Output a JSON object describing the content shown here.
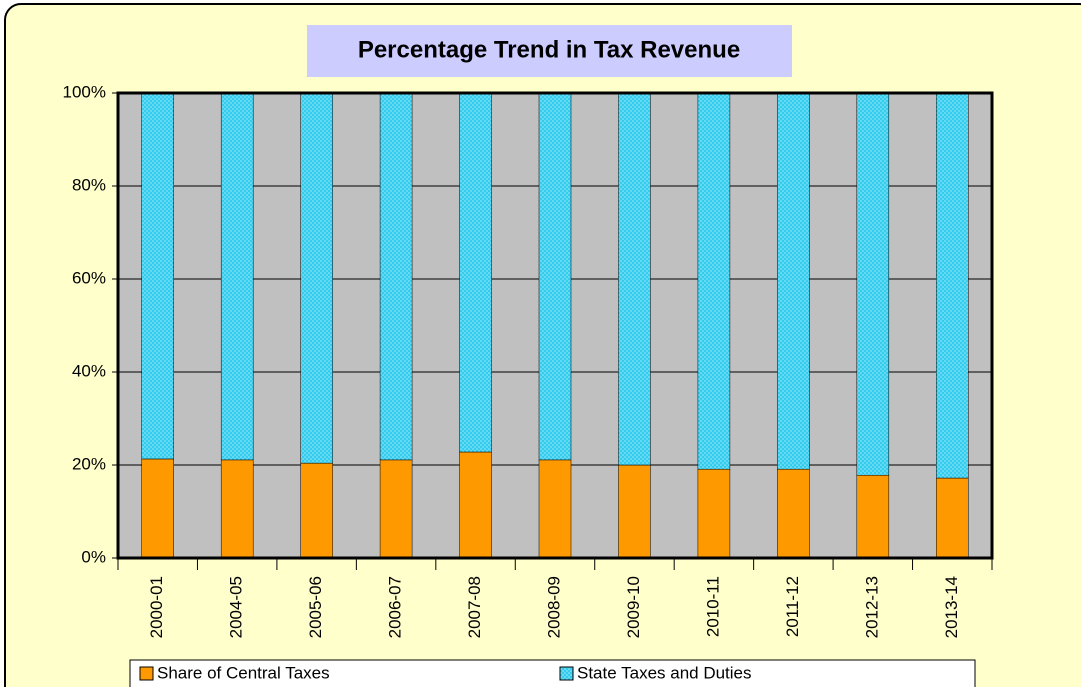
{
  "chart_data": {
    "type": "stacked_bar",
    "title": "Percentage Trend in Tax Revenue",
    "categories": [
      "2000-01",
      "2004-05",
      "2005-06",
      "2006-07",
      "2007-08",
      "2008-09",
      "2009-10",
      "2010-11",
      "2011-12",
      "2012-13",
      "2013-14"
    ],
    "series": [
      {
        "name": "Share of Central Taxes",
        "color": "#ff9900",
        "values": [
          21.3,
          21.1,
          20.4,
          21.1,
          22.8,
          21.1,
          20.0,
          19.1,
          19.1,
          17.8,
          17.2
        ]
      },
      {
        "name": "State Taxes and Duties",
        "color": "#33ccee",
        "values": [
          78.7,
          78.9,
          79.6,
          78.9,
          77.2,
          78.9,
          80.0,
          80.9,
          80.9,
          82.2,
          82.8
        ]
      }
    ],
    "ylim": [
      0,
      100
    ],
    "yticks": [
      {
        "value": 0,
        "label": "0%"
      },
      {
        "value": 20,
        "label": "20%"
      },
      {
        "value": 40,
        "label": "40%"
      },
      {
        "value": 60,
        "label": "60%"
      },
      {
        "value": 80,
        "label": "80%"
      },
      {
        "value": 100,
        "label": "100%"
      }
    ],
    "grid": true,
    "legend": "bottom"
  }
}
